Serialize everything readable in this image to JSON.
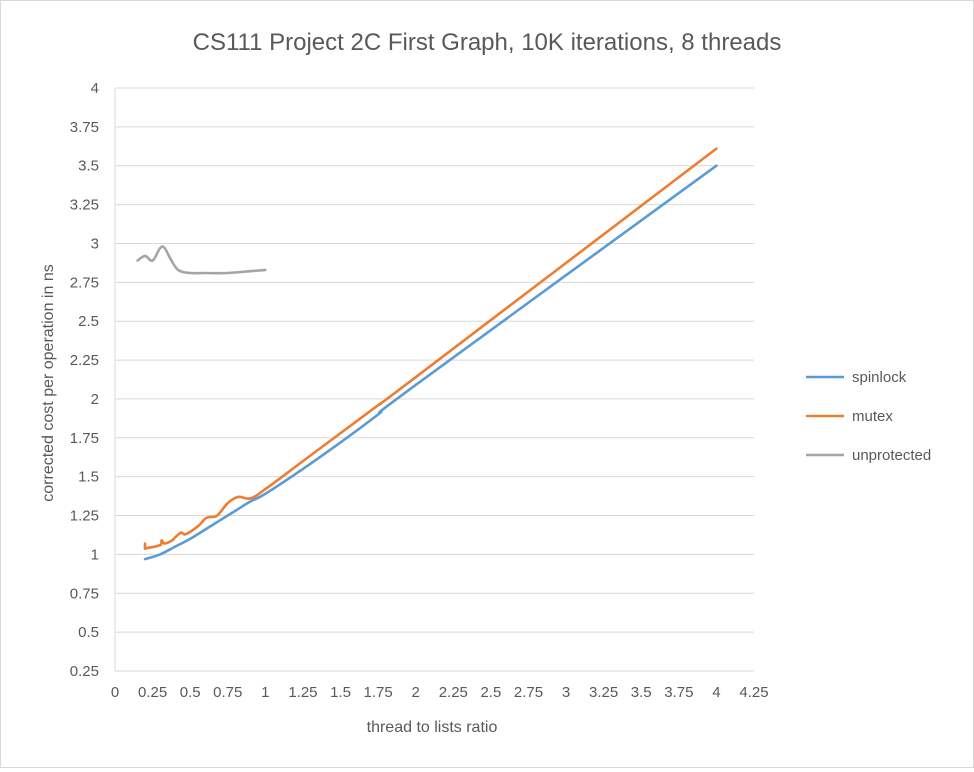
{
  "chart_data": {
    "type": "line",
    "title": "CS111 Project 2C First Graph, 10K iterations, 8 threads",
    "xlabel": "thread to lists ratio",
    "ylabel": "corrected cost per operation in ns",
    "xlim": [
      0,
      4.25
    ],
    "ylim": [
      0.25,
      4
    ],
    "x_ticks": [
      "0",
      "0.25",
      "0.5",
      "0.75",
      "1",
      "1.25",
      "1.5",
      "1.75",
      "2",
      "2.25",
      "2.5",
      "2.75",
      "3",
      "3.25",
      "3.5",
      "3.75",
      "4",
      "4.25"
    ],
    "y_ticks": [
      "0.25",
      "0.5",
      "0.75",
      "1",
      "1.25",
      "1.5",
      "1.75",
      "2",
      "2.25",
      "2.5",
      "2.75",
      "3",
      "3.25",
      "3.5",
      "3.75",
      "4"
    ],
    "grid": "horizontal",
    "legend_position": "right",
    "series": [
      {
        "name": "spinlock",
        "color": "#5b9bd5",
        "x": [
          0.2,
          0.3,
          0.4,
          0.5,
          0.6,
          0.7,
          0.8,
          0.9,
          1,
          1.25,
          1.5,
          1.75,
          2,
          4
        ],
        "y": [
          0.97,
          1.0,
          1.05,
          1.1,
          1.16,
          1.22,
          1.28,
          1.34,
          1.39,
          1.55,
          1.72,
          1.9,
          2.09,
          3.5
        ]
      },
      {
        "name": "mutex",
        "color": "#ed7d31",
        "x": [
          0.2,
          0.2,
          0.21,
          0.3,
          0.31,
          0.33,
          0.38,
          0.4,
          0.44,
          0.47,
          0.55,
          0.6,
          0.63,
          0.68,
          0.75,
          0.82,
          0.9,
          1,
          1.25,
          1.5,
          1.75,
          2,
          4
        ],
        "y": [
          1.07,
          1.04,
          1.04,
          1.06,
          1.09,
          1.07,
          1.09,
          1.11,
          1.14,
          1.13,
          1.18,
          1.23,
          1.24,
          1.25,
          1.33,
          1.37,
          1.36,
          1.42,
          1.6,
          1.78,
          1.96,
          2.14,
          3.61
        ]
      },
      {
        "name": "unprotected",
        "color": "#a5a5a5",
        "x": [
          0.15,
          0.2,
          0.25,
          0.3,
          0.33,
          0.37,
          0.42,
          0.5,
          0.6,
          0.75,
          1
        ],
        "y": [
          2.89,
          2.92,
          2.89,
          2.97,
          2.97,
          2.9,
          2.83,
          2.81,
          2.81,
          2.81,
          2.83
        ]
      }
    ]
  }
}
